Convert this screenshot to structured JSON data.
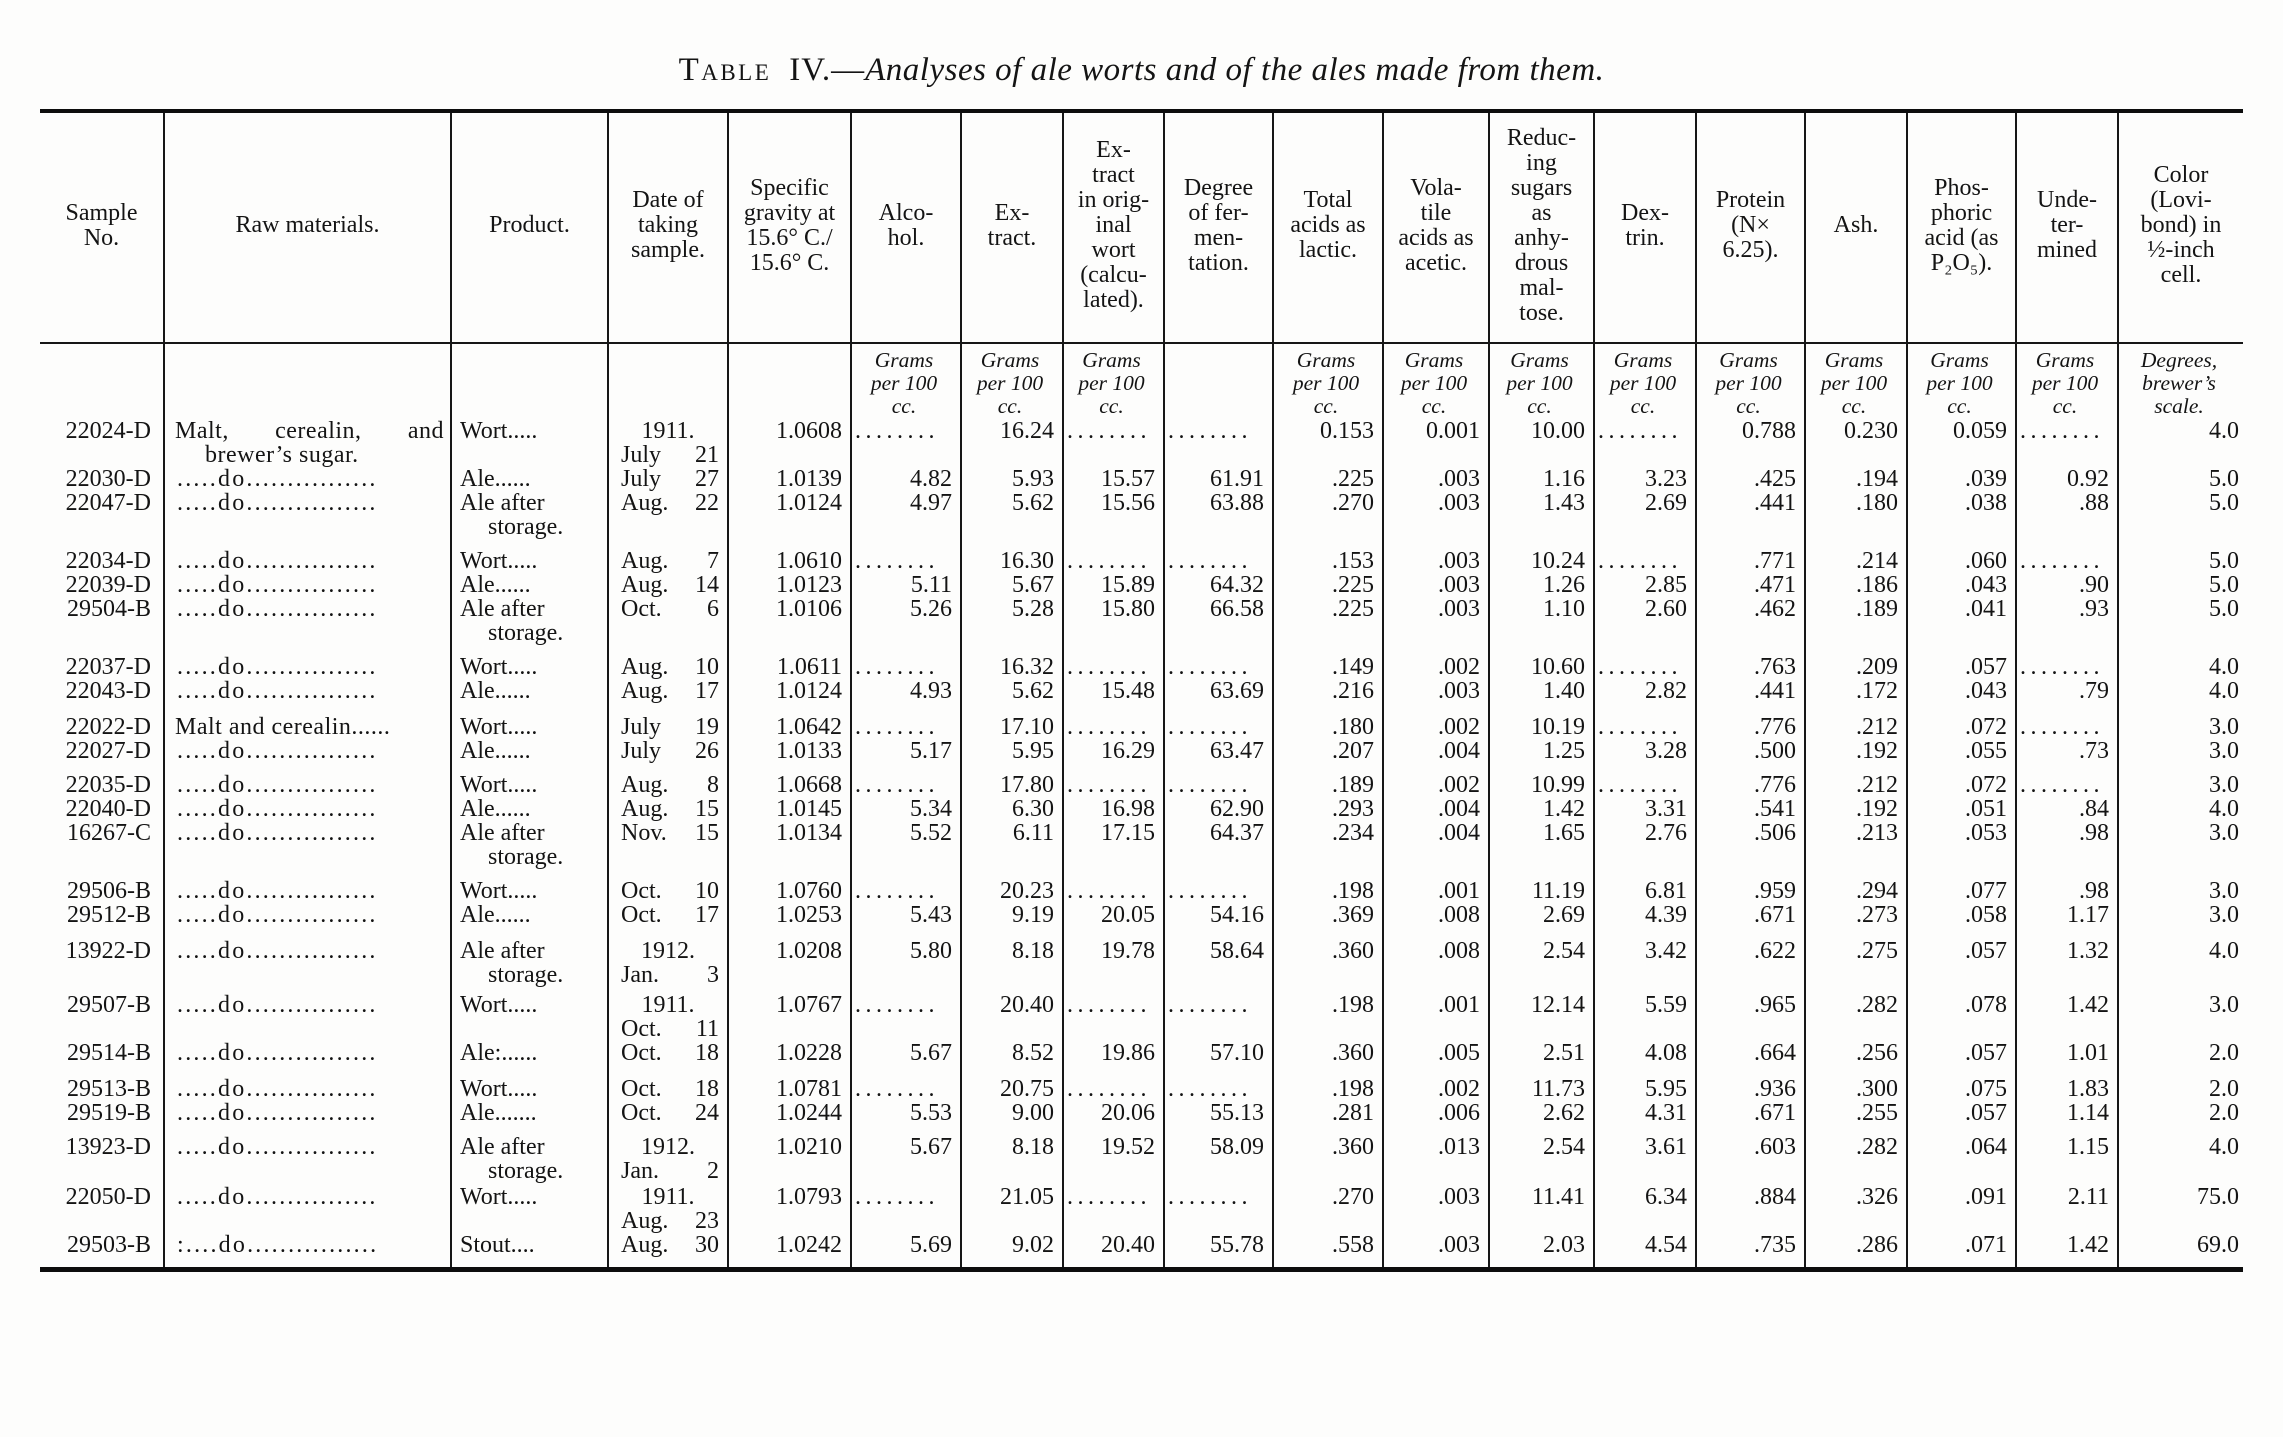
{
  "title": {
    "label": "Table",
    "number": "IV.",
    "dash": "—",
    "italic": "Analyses of ale worts and of the ales made from them."
  },
  "table": {
    "columns": [
      "Sample\nNo.",
      "Raw materials.",
      "Product.",
      "Date of\ntaking\nsample.",
      "Specific\ngravity at\n15.6° C./\n15.6° C.",
      "Alco-\nhol.",
      "Ex-\ntract.",
      "Ex-\ntract\nin orig-\ninal\nwort\n(calcu-\nlated).",
      "Degree\nof fer-\nmen-\ntation.",
      "Total\nacids as\nlactic.",
      "Vola-\ntile\nacids as\nacetic.",
      "Reduc-\ning\nsugars\nas\nanhy-\ndrous\nmal-\ntose.",
      "Dex-\ntrin.",
      "Protein\n(N×\n6.25).",
      "Ash.",
      "Phos-\nphoric\nacid (as\nP₂O₅).",
      "Unde-\nter-\nmined",
      "Color\n(Lovi-\nbond) in\n½-inch\ncell."
    ],
    "units": [
      "",
      "",
      "",
      "",
      "",
      "Grams\nper 100\ncc.",
      "Grams\nper 100\ncc.",
      "Grams\nper 100\ncc.",
      "",
      "Grams\nper 100\ncc.",
      "Grams\nper 100\ncc.",
      "Grams\nper 100\ncc.",
      "Grams\nper 100\ncc.",
      "Grams\nper 100\ncc.",
      "Grams\nper 100\ncc.",
      "Grams\nper 100\ncc.",
      "Grams\nper 100\ncc.",
      "Degrees,\nbrewer’s\nscale."
    ],
    "groups": [
      {
        "rows": [
          {
            "sample": "22024-D",
            "raw": "Malt, cerealin, and brewer’s sugar.",
            "product": "Wort.....",
            "year": "1911.",
            "month": "July",
            "day": "21",
            "values": [
              "1.0608",
              "........",
              "16.24",
              "........",
              "........",
              "0.153",
              "0.001",
              "10.00",
              "........",
              "0.788",
              "0.230",
              "0.059",
              "........",
              "4.0"
            ]
          }
        ]
      },
      {
        "rows": [
          {
            "sample": "22030-D",
            "raw": ".....do................",
            "product": "Ale......",
            "month": "July",
            "day": "27",
            "values": [
              "1.0139",
              "4.82",
              "5.93",
              "15.57",
              "61.91",
              ".225",
              ".003",
              "1.16",
              "3.23",
              ".425",
              ".194",
              ".039",
              "0.92",
              "5.0"
            ]
          },
          {
            "sample": "22047-D",
            "raw": ".....do................",
            "product": "Ale after storage.",
            "month": "Aug.",
            "day": "22",
            "values": [
              "1.0124",
              "4.97",
              "5.62",
              "15.56",
              "63.88",
              ".270",
              ".003",
              "1.43",
              "2.69",
              ".441",
              ".180",
              ".038",
              ".88",
              "5.0"
            ]
          }
        ]
      },
      {
        "rows": [
          {
            "sample": "22034-D",
            "raw": ".....do................",
            "product": "Wort.....",
            "month": "Aug.",
            "day": "7",
            "values": [
              "1.0610",
              "........",
              "16.30",
              "........",
              "........",
              ".153",
              ".003",
              "10.24",
              "........",
              ".771",
              ".214",
              ".060",
              "........",
              "5.0"
            ]
          },
          {
            "sample": "22039-D",
            "raw": ".....do................",
            "product": "Ale......",
            "month": "Aug.",
            "day": "14",
            "values": [
              "1.0123",
              "5.11",
              "5.67",
              "15.89",
              "64.32",
              ".225",
              ".003",
              "1.26",
              "2.85",
              ".471",
              ".186",
              ".043",
              ".90",
              "5.0"
            ]
          },
          {
            "sample": "29504-B",
            "raw": ".....do................",
            "product": "Ale after storage.",
            "month": "Oct.",
            "day": "6",
            "values": [
              "1.0106",
              "5.26",
              "5.28",
              "15.80",
              "66.58",
              ".225",
              ".003",
              "1.10",
              "2.60",
              ".462",
              ".189",
              ".041",
              ".93",
              "5.0"
            ]
          }
        ]
      },
      {
        "rows": [
          {
            "sample": "22037-D",
            "raw": ".....do................",
            "product": "Wort.....",
            "month": "Aug.",
            "day": "10",
            "values": [
              "1.0611",
              "........",
              "16.32",
              "........",
              "........",
              ".149",
              ".002",
              "10.60",
              "........",
              ".763",
              ".209",
              ".057",
              "........",
              "4.0"
            ]
          },
          {
            "sample": "22043-D",
            "raw": ".....do................",
            "product": "Ale......",
            "month": "Aug.",
            "day": "17",
            "values": [
              "1.0124",
              "4.93",
              "5.62",
              "15.48",
              "63.69",
              ".216",
              ".003",
              "1.40",
              "2.82",
              ".441",
              ".172",
              ".043",
              ".79",
              "4.0"
            ]
          }
        ]
      },
      {
        "rows": [
          {
            "sample": "22022-D",
            "raw": "Malt and cerealin......",
            "product": "Wort.....",
            "month": "July",
            "day": "19",
            "values": [
              "1.0642",
              "........",
              "17.10",
              "........",
              "........",
              ".180",
              ".002",
              "10.19",
              "........",
              ".776",
              ".212",
              ".072",
              "........",
              "3.0"
            ]
          },
          {
            "sample": "22027-D",
            "raw": ".....do................",
            "product": "Ale......",
            "month": "July",
            "day": "26",
            "values": [
              "1.0133",
              "5.17",
              "5.95",
              "16.29",
              "63.47",
              ".207",
              ".004",
              "1.25",
              "3.28",
              ".500",
              ".192",
              ".055",
              ".73",
              "3.0"
            ]
          }
        ]
      },
      {
        "rows": [
          {
            "sample": "22035-D",
            "raw": ".....do................",
            "product": "Wort.....",
            "month": "Aug.",
            "day": "8",
            "values": [
              "1.0668",
              "........",
              "17.80",
              "........",
              "........",
              ".189",
              ".002",
              "10.99",
              "........",
              ".776",
              ".212",
              ".072",
              "........",
              "3.0"
            ]
          },
          {
            "sample": "22040-D",
            "raw": ".....do................",
            "product": "Ale......",
            "month": "Aug.",
            "day": "15",
            "values": [
              "1.0145",
              "5.34",
              "6.30",
              "16.98",
              "62.90",
              ".293",
              ".004",
              "1.42",
              "3.31",
              ".541",
              ".192",
              ".051",
              ".84",
              "4.0"
            ]
          },
          {
            "sample": "16267-C",
            "raw": ".....do................",
            "product": "Ale after storage.",
            "month": "Nov.",
            "day": "15",
            "values": [
              "1.0134",
              "5.52",
              "6.11",
              "17.15",
              "64.37",
              ".234",
              ".004",
              "1.65",
              "2.76",
              ".506",
              ".213",
              ".053",
              ".98",
              "3.0"
            ]
          }
        ]
      },
      {
        "rows": [
          {
            "sample": "29506-B",
            "raw": ".....do................",
            "product": "Wort.....",
            "month": "Oct.",
            "day": "10",
            "values": [
              "1.0760",
              "........",
              "20.23",
              "........",
              "........",
              ".198",
              ".001",
              "11.19",
              "6.81",
              ".959",
              ".294",
              ".077",
              ".98",
              "3.0"
            ]
          },
          {
            "sample": "29512-B",
            "raw": ".....do................",
            "product": "Ale......",
            "month": "Oct.",
            "day": "17",
            "values": [
              "1.0253",
              "5.43",
              "9.19",
              "20.05",
              "54.16",
              ".369",
              ".008",
              "2.69",
              "4.39",
              ".671",
              ".273",
              ".058",
              "1.17",
              "3.0"
            ]
          }
        ]
      },
      {
        "rows": [
          {
            "sample": "13922-D",
            "raw": ".....do................",
            "product": "Ale after storage.",
            "year": "1912.",
            "month": "Jan.",
            "day": "3",
            "values": [
              "1.0208",
              "5.80",
              "8.18",
              "19.78",
              "58.64",
              ".360",
              ".008",
              "2.54",
              "3.42",
              ".622",
              ".275",
              ".057",
              "1.32",
              "4.0"
            ]
          }
        ]
      },
      {
        "rows": [
          {
            "sample": "29507-B",
            "raw": ".....do................",
            "product": "Wort.....",
            "year": "1911.",
            "month": "Oct.",
            "day": "11",
            "values": [
              "1.0767",
              "........",
              "20.40",
              "........",
              "........",
              ".198",
              ".001",
              "12.14",
              "5.59",
              ".965",
              ".282",
              ".078",
              "1.42",
              "3.0"
            ]
          },
          {
            "sample": "29514-B",
            "raw": ".....do................",
            "product": "Ale:......",
            "month": "Oct.",
            "day": "18",
            "values": [
              "1.0228",
              "5.67",
              "8.52",
              "19.86",
              "57.10",
              ".360",
              ".005",
              "2.51",
              "4.08",
              ".664",
              ".256",
              ".057",
              "1.01",
              "2.0"
            ]
          }
        ]
      },
      {
        "rows": [
          {
            "sample": "29513-B",
            "raw": ".....do................",
            "product": "Wort.....",
            "month": "Oct.",
            "day": "18",
            "values": [
              "1.0781",
              "........",
              "20.75",
              "........",
              "........",
              ".198",
              ".002",
              "11.73",
              "5.95",
              ".936",
              ".300",
              ".075",
              "1.83",
              "2.0"
            ]
          },
          {
            "sample": "29519-B",
            "raw": ".....do................",
            "product": "Ale.......",
            "month": "Oct.",
            "day": "24",
            "values": [
              "1.0244",
              "5.53",
              "9.00",
              "20.06",
              "55.13",
              ".281",
              ".006",
              "2.62",
              "4.31",
              ".671",
              ".255",
              ".057",
              "1.14",
              "2.0"
            ]
          }
        ]
      },
      {
        "rows": [
          {
            "sample": "13923-D",
            "raw": ".....do................",
            "product": "Ale after storage.",
            "year": "1912.",
            "month": "Jan.",
            "day": "2",
            "values": [
              "1.0210",
              "5.67",
              "8.18",
              "19.52",
              "58.09",
              ".360",
              ".013",
              "2.54",
              "3.61",
              ".603",
              ".282",
              ".064",
              "1.15",
              "4.0"
            ]
          }
        ]
      },
      {
        "rows": [
          {
            "sample": "22050-D",
            "raw": ".....do................",
            "product": "Wort.....",
            "year": "1911.",
            "month": "Aug.",
            "day": "23",
            "values": [
              "1.0793",
              "........",
              "21.05",
              "........",
              "........",
              ".270",
              ".003",
              "11.41",
              "6.34",
              ".884",
              ".326",
              ".091",
              "2.11",
              "75.0"
            ]
          },
          {
            "sample": "29503-B",
            "raw": ":....do................",
            "product": "Stout....",
            "month": "Aug.",
            "day": "30",
            "values": [
              "1.0242",
              "5.69",
              "9.02",
              "20.40",
              "55.78",
              ".558",
              ".003",
              "2.03",
              "4.54",
              ".735",
              ".286",
              ".071",
              "1.42",
              "69.0"
            ]
          }
        ]
      }
    ]
  }
}
